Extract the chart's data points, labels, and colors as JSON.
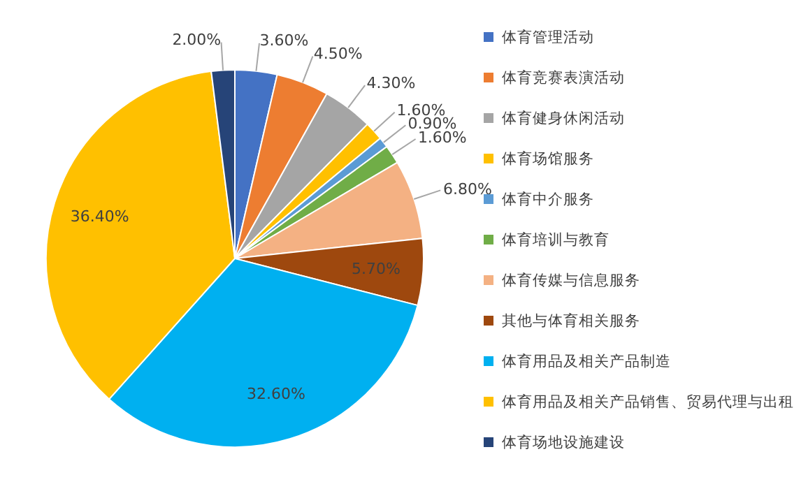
{
  "chart_data": {
    "type": "pie",
    "legend": "right",
    "categories": [
      "体育管理活动",
      "体育竞赛表演活动",
      "体育健身休闲活动",
      "体育场馆服务",
      "体育中介服务",
      "体育培训与教育",
      "体育传媒与信息服务",
      "其他与体育相关服务",
      "体育用品及相关产品制造",
      "体育用品及相关产品销售、贸易代理与出租",
      "体育场地设施建设"
    ],
    "values": [
      3.6,
      4.5,
      4.3,
      1.6,
      0.9,
      1.6,
      6.8,
      5.7,
      32.6,
      36.4,
      2.0
    ],
    "value_labels": [
      "3.60%",
      "4.50%",
      "4.30%",
      "1.60%",
      "0.90%",
      "1.60%",
      "6.80%",
      "5.70%",
      "32.60%",
      "36.40%",
      "2.00%"
    ],
    "colors": [
      "#4472c4",
      "#ed7d31",
      "#a5a5a5",
      "#ffc000",
      "#5b9bd5",
      "#70ad47",
      "#f4b183",
      "#9e480e",
      "#00b0f0",
      "#ffc000",
      "#264478"
    ]
  }
}
